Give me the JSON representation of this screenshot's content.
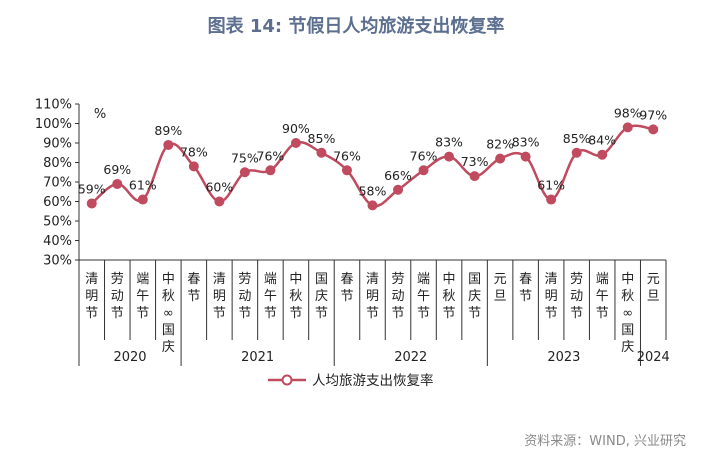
{
  "title": "图表 14: 节假日人均旅游支出恢复率",
  "source": "资料来源：WIND, 兴业研究",
  "unit_label": "%",
  "colors": {
    "line": "#c04a5e",
    "title": "#5c6f8f",
    "axis": "#333333"
  },
  "chart_data": {
    "type": "line",
    "ylim": [
      30,
      110
    ],
    "yticks": [
      "30%",
      "40%",
      "50%",
      "60%",
      "70%",
      "80%",
      "90%",
      "100%",
      "110%"
    ],
    "categories": [
      "清明节",
      "劳动节",
      "端午节",
      "中秋&国庆",
      "春节",
      "清明节",
      "劳动节",
      "端午节",
      "中秋节",
      "国庆节",
      "春节",
      "清明节",
      "劳动节",
      "端午节",
      "中秋节",
      "国庆节",
      "元旦",
      "春节",
      "清明节",
      "劳动节",
      "端午节",
      "中秋&国庆",
      "元旦"
    ],
    "years": [
      {
        "label": "2020",
        "start": 0,
        "end": 3
      },
      {
        "label": "2021",
        "start": 4,
        "end": 9
      },
      {
        "label": "2022",
        "start": 10,
        "end": 15
      },
      {
        "label": "2023",
        "start": 16,
        "end": 21
      },
      {
        "label": "2024",
        "start": 22,
        "end": 22
      }
    ],
    "series": [
      {
        "name": "人均旅游支出恢复率",
        "values": [
          59,
          69,
          61,
          89,
          78,
          60,
          75,
          76,
          90,
          85,
          76,
          58,
          66,
          76,
          83,
          73,
          82,
          83,
          61,
          85,
          84,
          98,
          97
        ],
        "labels": [
          "59%",
          "69%",
          "61%",
          "89%",
          "78%",
          "60%",
          "75%",
          "76%",
          "90%",
          "85%",
          "76%",
          "58%",
          "66%",
          "76%",
          "83%",
          "73%",
          "82%",
          "83%",
          "61%",
          "85%",
          "84%",
          "98%",
          "97%"
        ]
      }
    ],
    "legend": "bottom-center"
  }
}
